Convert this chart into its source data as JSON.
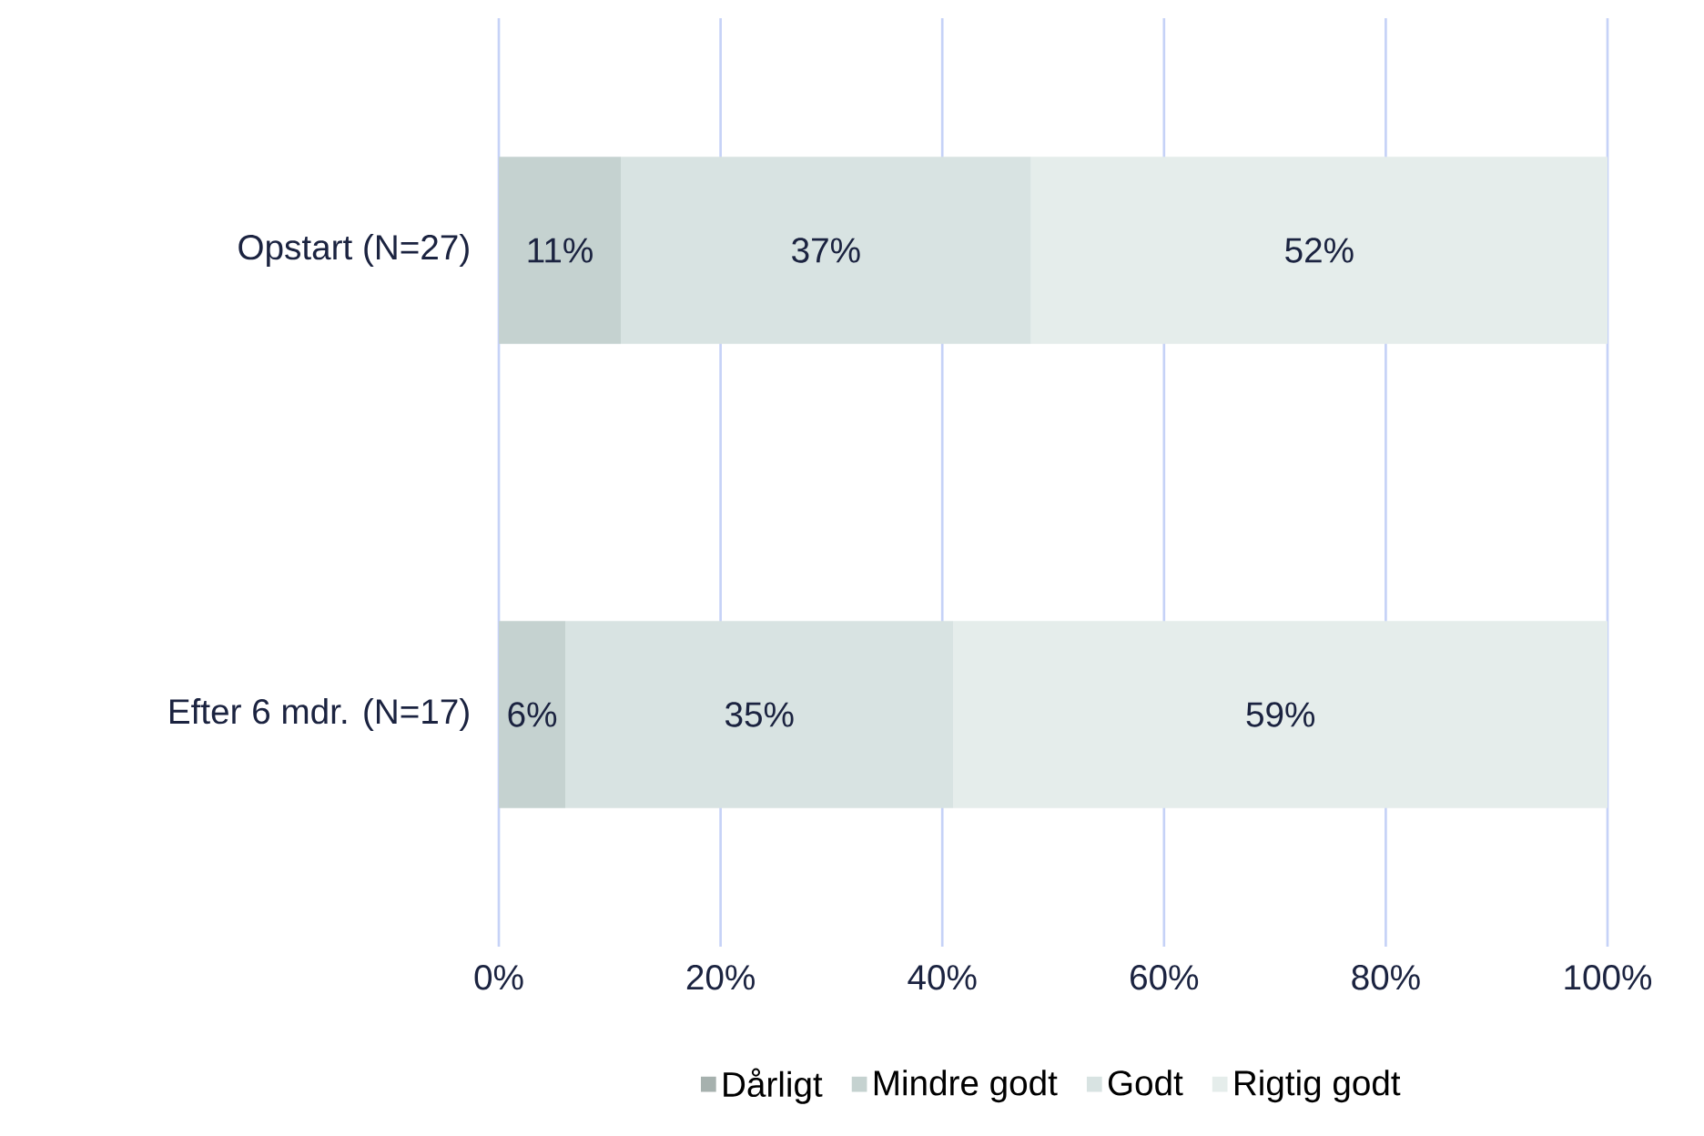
{
  "chart_data": {
    "type": "bar",
    "orientation": "horizontal",
    "stacked": true,
    "categories": [
      "Opstart (N=27)",
      "Efter 6 mdr. (N=17)"
    ],
    "series": [
      {
        "name": "Dårligt",
        "color": "#a6b1ae",
        "values": [
          0,
          0
        ],
        "value_labels": [
          null,
          null
        ]
      },
      {
        "name": "Mindre godt",
        "color": "#c5d2d0",
        "values": [
          11,
          6
        ],
        "value_labels": [
          "11%",
          "6%"
        ]
      },
      {
        "name": "Godt",
        "color": "#d8e3e2",
        "values": [
          37,
          35
        ],
        "value_labels": [
          "37%",
          "35%"
        ]
      },
      {
        "name": "Rigtig godt",
        "color": "#e5edeb",
        "values": [
          52,
          59
        ],
        "value_labels": [
          "52%",
          "59%"
        ]
      }
    ],
    "xlim": [
      0,
      100
    ],
    "xticks": [
      {
        "value": 0,
        "label": "0%"
      },
      {
        "value": 20,
        "label": "20%"
      },
      {
        "value": 40,
        "label": "40%"
      },
      {
        "value": 60,
        "label": "60%"
      },
      {
        "value": 80,
        "label": "80%"
      },
      {
        "value": 100,
        "label": "100%"
      }
    ],
    "grid": "x",
    "legend": "bottom"
  }
}
